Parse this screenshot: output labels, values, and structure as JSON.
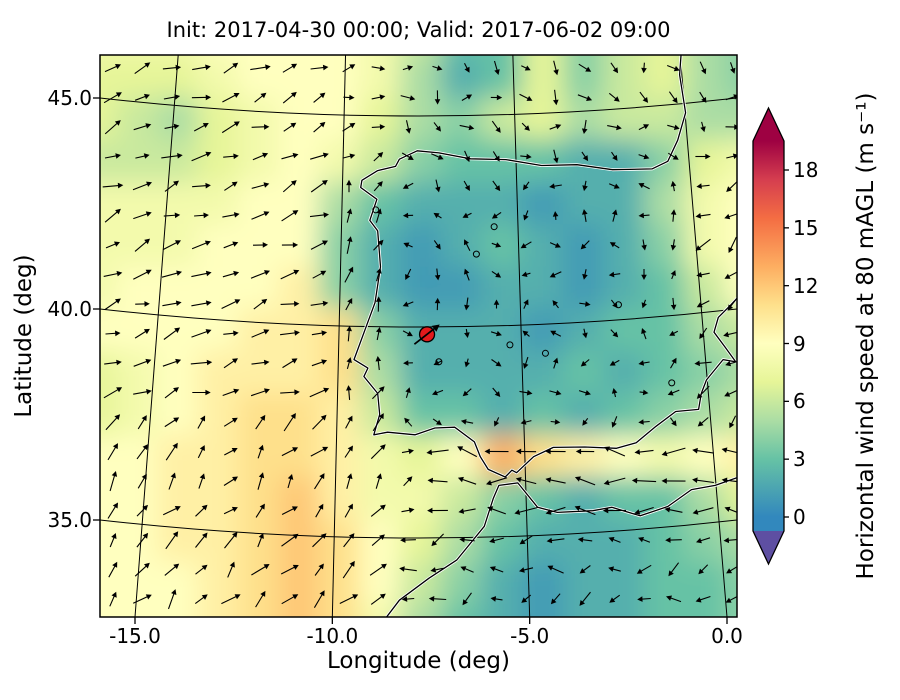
{
  "chart_data": {
    "type": "heatmap",
    "title": "Init: 2017-04-30 00:00; Valid: 2017-06-02 09:00",
    "xlabel": "Longitude (deg)",
    "ylabel": "Latitude (deg)",
    "x_ticks": [
      -15.0,
      -10.0,
      -5.0,
      0.0
    ],
    "x_tick_labels": [
      "-15.0",
      "-10.0",
      "-5.0",
      "0.0"
    ],
    "y_ticks": [
      45.0,
      40.0,
      35.0
    ],
    "y_tick_labels": [
      "45.0",
      "40.0",
      "35.0"
    ],
    "lon_range": [
      -15.9,
      0.25
    ],
    "lat_range": [
      32.7,
      46.0
    ],
    "grid_on": true,
    "colorbar": {
      "label": "Horizontal wind speed at 80 mAGL (m s⁻¹)",
      "ticks": [
        0,
        3,
        6,
        9,
        12,
        15,
        18
      ],
      "tick_labels": [
        "0",
        "3",
        "6",
        "9",
        "12",
        "15",
        "18"
      ],
      "extend": "both",
      "under_color": "#5e4fa2",
      "over_color": "#9e0142",
      "stops": [
        [
          0,
          "#3288bd"
        ],
        [
          3,
          "#66c2a5"
        ],
        [
          5,
          "#abdda4"
        ],
        [
          7,
          "#e6f598"
        ],
        [
          9,
          "#ffffbf"
        ],
        [
          11,
          "#fee08b"
        ],
        [
          13,
          "#fdae61"
        ],
        [
          15.5,
          "#f46d43"
        ],
        [
          17.5,
          "#d53e4f"
        ],
        [
          19.5,
          "#9e0142"
        ]
      ]
    },
    "marker": {
      "lon": -7.6,
      "lat": 39.4,
      "color": "#e31a1c",
      "edge": "#000000"
    },
    "wind_speed_grid": {
      "units": "m s-1",
      "lon_min": -16.5,
      "lon_max": 1.0,
      "lat_min": 32.0,
      "lat_max": 47.0,
      "cols": 17,
      "rows": 15,
      "order": "north_to_south",
      "values_ms": [
        [
          8,
          8,
          8,
          9,
          9,
          9,
          9,
          8,
          6,
          3,
          3,
          7,
          4,
          6,
          7,
          5,
          4
        ],
        [
          7,
          7,
          7,
          8,
          9,
          9,
          9,
          8,
          5,
          2,
          3,
          7,
          4,
          6,
          7,
          5,
          4
        ],
        [
          7,
          6,
          5,
          7,
          8,
          9,
          9,
          7,
          5,
          4,
          6,
          7,
          5,
          6,
          6,
          5,
          5
        ],
        [
          6,
          6,
          6,
          7,
          8,
          9,
          8,
          6,
          4,
          3,
          3,
          3,
          2,
          2,
          4,
          7,
          8
        ],
        [
          8,
          8,
          8,
          8,
          9,
          9,
          5,
          3,
          2,
          2,
          2,
          1,
          2,
          2,
          5,
          8,
          9
        ],
        [
          8,
          8,
          8,
          9,
          9,
          9,
          4,
          2,
          1,
          2,
          3,
          2,
          1,
          2,
          4,
          8,
          9
        ],
        [
          8,
          9,
          9,
          9,
          9,
          10,
          4,
          2,
          1,
          1,
          2,
          2,
          1,
          2,
          3,
          6,
          9
        ],
        [
          9,
          9,
          9,
          9,
          10,
          10,
          11,
          4,
          2,
          2,
          2,
          1,
          2,
          3,
          3,
          5,
          6
        ],
        [
          7,
          8,
          9,
          10,
          10,
          10,
          11,
          5,
          2,
          2,
          2,
          2,
          3,
          2,
          3,
          4,
          5
        ],
        [
          7,
          8,
          9,
          10,
          11,
          11,
          10,
          6,
          3,
          3,
          2,
          3,
          2,
          3,
          4,
          5,
          6
        ],
        [
          9,
          9,
          10,
          10,
          11,
          11,
          10,
          8,
          7,
          9,
          13,
          11,
          10,
          9,
          8,
          9,
          10
        ],
        [
          9,
          9,
          10,
          10,
          11,
          12,
          10,
          8,
          8,
          6,
          4,
          3,
          2,
          3,
          3,
          5,
          7
        ],
        [
          9,
          9,
          10,
          10,
          11,
          12,
          11,
          9,
          7,
          5,
          3,
          2,
          2,
          2,
          3,
          4,
          5
        ],
        [
          9,
          9,
          9,
          10,
          11,
          12,
          11,
          9,
          6,
          4,
          2,
          1,
          2,
          2,
          3,
          3,
          4
        ],
        [
          9,
          9,
          9,
          10,
          11,
          12,
          11,
          8,
          5,
          3,
          2,
          1,
          2,
          2,
          3,
          3,
          4
        ]
      ]
    },
    "wind_vectors": {
      "regions": [
        {
          "name": "gibraltar-jet",
          "lon": [
            -7.5,
            0.8
          ],
          "lat": [
            34.8,
            37.2
          ],
          "dir": 175,
          "len": 21,
          "jitter": 25
        },
        {
          "name": "atlantic-southwest",
          "lon": [
            -17,
            -8.8
          ],
          "lat": [
            31.5,
            37.5
          ],
          "dir": 50,
          "len": 18,
          "jitter": 25
        },
        {
          "name": "atlantic-west",
          "lon": [
            -17,
            -9.6
          ],
          "lat": [
            37.5,
            47.5
          ],
          "dir": 20,
          "len": 18,
          "jitter": 22
        },
        {
          "name": "north-africa",
          "lon": [
            -9.5,
            0.8
          ],
          "lat": [
            31.5,
            34.8
          ],
          "dir": 195,
          "len": 15,
          "jitter": 40
        },
        {
          "name": "portugal-coast",
          "lon": [
            -9.6,
            -8.2
          ],
          "lat": [
            37.2,
            43.5
          ],
          "dir": 75,
          "len": 15,
          "jitter": 30
        },
        {
          "name": "biscay-france",
          "lon": [
            -8.2,
            0.8
          ],
          "lat": [
            43.5,
            47.5
          ],
          "dir": -30,
          "len": 13,
          "jitter": 70
        },
        {
          "name": "mediterranean-east",
          "lon": [
            -1.3,
            0.8
          ],
          "lat": [
            37.2,
            43.5
          ],
          "dir": 215,
          "len": 16,
          "jitter": 30
        },
        {
          "name": "iberia-interior",
          "lon": [
            -8.2,
            -1.3
          ],
          "lat": [
            37.2,
            43.5
          ],
          "dir": 205,
          "len": 11,
          "jitter": 150
        }
      ],
      "default": {
        "dir": 20,
        "len": 14,
        "jitter": 30
      },
      "marker_arrow": {
        "dir": 38,
        "len": 32
      }
    },
    "map": {
      "graticule": {
        "lon_lines": [
          -15,
          -10,
          -5,
          0
        ],
        "lat_lines": [
          35,
          40,
          45
        ]
      },
      "coastlines": {
        "iberia_france": [
          [
            -1.15,
            46.2
          ],
          [
            -1.2,
            45.55
          ],
          [
            -1.05,
            44.65
          ],
          [
            -1.25,
            44.0
          ],
          [
            -1.5,
            43.5
          ],
          [
            -1.9,
            43.32
          ],
          [
            -2.9,
            43.3
          ],
          [
            -3.8,
            43.42
          ],
          [
            -4.7,
            43.4
          ],
          [
            -5.6,
            43.54
          ],
          [
            -6.5,
            43.56
          ],
          [
            -7.3,
            43.7
          ],
          [
            -7.85,
            43.75
          ],
          [
            -8.3,
            43.55
          ],
          [
            -8.4,
            43.38
          ],
          [
            -8.85,
            43.28
          ],
          [
            -9.25,
            43.05
          ],
          [
            -9.28,
            42.88
          ],
          [
            -8.87,
            42.6
          ],
          [
            -9.05,
            42.1
          ],
          [
            -8.85,
            41.85
          ],
          [
            -8.78,
            41.0
          ],
          [
            -8.92,
            40.15
          ],
          [
            -9.45,
            38.8
          ],
          [
            -9.1,
            38.6
          ],
          [
            -9.2,
            38.4
          ],
          [
            -8.85,
            38.0
          ],
          [
            -8.8,
            37.5
          ],
          [
            -8.95,
            37.02
          ],
          [
            -8.6,
            37.08
          ],
          [
            -7.9,
            37.02
          ],
          [
            -7.4,
            37.18
          ],
          [
            -6.9,
            37.2
          ],
          [
            -6.4,
            36.85
          ],
          [
            -6.25,
            36.5
          ],
          [
            -6.05,
            36.2
          ],
          [
            -5.62,
            36.02
          ],
          [
            -5.45,
            36.18
          ],
          [
            -5.33,
            36.12
          ],
          [
            -4.9,
            36.5
          ],
          [
            -4.4,
            36.72
          ],
          [
            -3.6,
            36.73
          ],
          [
            -2.8,
            36.7
          ],
          [
            -2.3,
            36.83
          ],
          [
            -1.8,
            37.22
          ],
          [
            -1.3,
            37.57
          ],
          [
            -0.72,
            37.62
          ],
          [
            -0.65,
            38.0
          ],
          [
            -0.52,
            38.32
          ],
          [
            -0.1,
            38.8
          ],
          [
            0.22,
            38.75
          ],
          [
            -0.05,
            39.1
          ],
          [
            -0.33,
            39.45
          ],
          [
            -0.22,
            39.8
          ],
          [
            0.1,
            40.1
          ],
          [
            0.55,
            40.55
          ]
        ],
        "north_africa": [
          [
            -8.75,
            32.55
          ],
          [
            -8.3,
            33.1
          ],
          [
            -7.55,
            33.62
          ],
          [
            -6.85,
            34.05
          ],
          [
            -6.15,
            34.85
          ],
          [
            -5.92,
            35.52
          ],
          [
            -5.78,
            35.82
          ],
          [
            -5.3,
            35.88
          ],
          [
            -4.8,
            35.3
          ],
          [
            -4.3,
            35.18
          ],
          [
            -3.4,
            35.22
          ],
          [
            -2.92,
            35.3
          ],
          [
            -2.2,
            35.1
          ],
          [
            -1.5,
            35.32
          ],
          [
            -0.9,
            35.72
          ],
          [
            -0.3,
            35.82
          ],
          [
            0.55,
            36.1
          ]
        ]
      },
      "inland_water": [
        [
          -5.5,
          39.15
        ],
        [
          -4.6,
          38.95
        ],
        [
          -2.75,
          40.1
        ],
        [
          -6.35,
          41.3
        ],
        [
          -8.9,
          42.35
        ],
        [
          -1.4,
          38.25
        ],
        [
          -5.9,
          41.95
        ],
        [
          -7.3,
          38.75
        ]
      ]
    }
  }
}
